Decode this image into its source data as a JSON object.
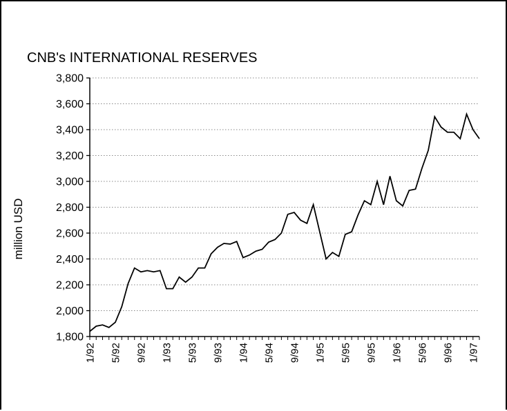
{
  "chart_data": {
    "type": "line",
    "title": "CNB's INTERNATIONAL RESERVES",
    "xlabel": "",
    "ylabel": "million USD",
    "ylim": [
      1800,
      3800
    ],
    "yticks": [
      "1,800",
      "2,000",
      "2,200",
      "2,400",
      "2,600",
      "2,800",
      "3,000",
      "3,200",
      "3,400",
      "3,600",
      "3,800"
    ],
    "ytick_values": [
      1800,
      2000,
      2200,
      2400,
      2600,
      2800,
      3000,
      3200,
      3400,
      3600,
      3800
    ],
    "xticks": [
      "1/92",
      "5/92",
      "9/92",
      "1/93",
      "5/93",
      "9/93",
      "1/94",
      "5/94",
      "9/94",
      "1/95",
      "5/95",
      "9/95",
      "1/96",
      "5/96",
      "9/96",
      "1/97"
    ],
    "grid": "horizontal dotted",
    "colors": {
      "line": "#000000",
      "grid": "#888888",
      "axis": "#000000"
    },
    "series": [
      {
        "x": [
          "1/92",
          "2/92",
          "3/92",
          "4/92",
          "5/92",
          "6/92",
          "7/92",
          "8/92",
          "9/92",
          "10/92",
          "11/92",
          "12/92",
          "1/93",
          "2/93",
          "3/93",
          "4/93",
          "5/93",
          "6/93",
          "7/93",
          "8/93",
          "9/93",
          "10/93",
          "11/93",
          "12/93",
          "1/94",
          "2/94",
          "3/94",
          "4/94",
          "5/94",
          "6/94",
          "7/94",
          "8/94",
          "9/94",
          "10/94",
          "11/94",
          "12/94",
          "1/95",
          "2/95",
          "3/95",
          "4/95",
          "5/95",
          "6/95",
          "7/95",
          "8/95",
          "9/95",
          "10/95",
          "11/95",
          "12/95",
          "1/96",
          "2/96",
          "3/96",
          "4/96",
          "5/96",
          "6/96",
          "7/96",
          "8/96",
          "9/96",
          "10/96",
          "11/96",
          "12/96",
          "1/97",
          "2/97"
        ],
        "values": [
          1840,
          1880,
          1890,
          1870,
          1910,
          2030,
          2210,
          2330,
          2300,
          2310,
          2300,
          2310,
          2170,
          2170,
          2260,
          2220,
          2260,
          2330,
          2330,
          2440,
          2490,
          2520,
          2515,
          2535,
          2410,
          2430,
          2460,
          2475,
          2530,
          2550,
          2600,
          2745,
          2760,
          2700,
          2675,
          2820,
          2610,
          2400,
          2450,
          2420,
          2590,
          2610,
          2740,
          2850,
          2820,
          3000,
          2820,
          3040,
          2850,
          2810,
          2930,
          2940,
          3100,
          3240,
          3500,
          3420,
          3380,
          3380,
          3330,
          3520,
          3400,
          3330
        ]
      }
    ]
  }
}
